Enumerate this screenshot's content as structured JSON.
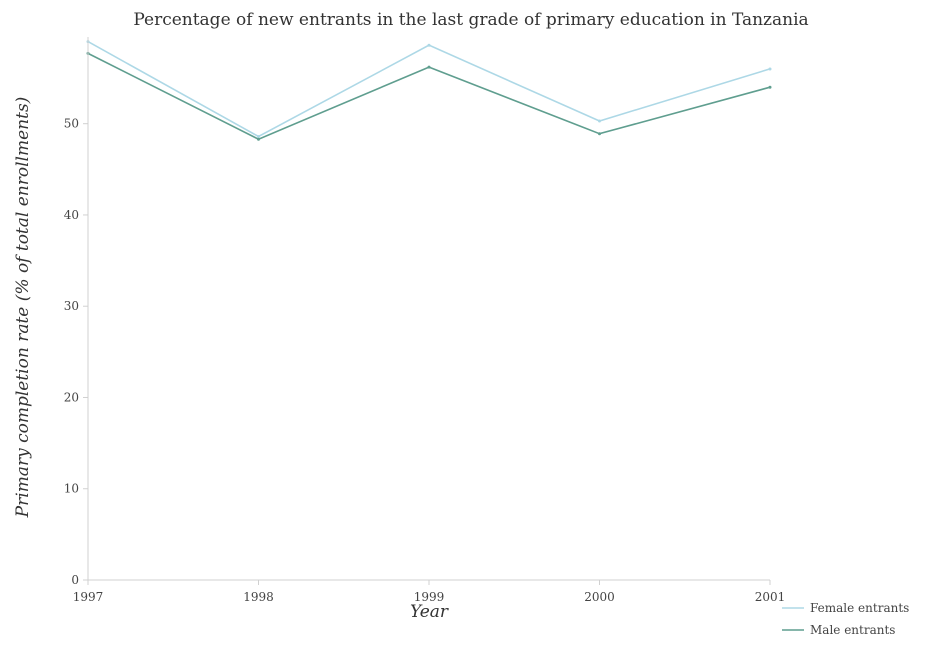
{
  "chart_data": {
    "type": "line",
    "title": "Percentage of new entrants in the last grade of primary education in Tanzania",
    "xlabel": "Year",
    "ylabel": "Primary completion rate (% of total enrollments)",
    "categories": [
      "1997",
      "1998",
      "1999",
      "2000",
      "2001"
    ],
    "ylim": [
      0,
      59.5
    ],
    "yticks": [
      0,
      10,
      20,
      30,
      40,
      50
    ],
    "grid": false,
    "legend": "bottom-right",
    "series": [
      {
        "name": "Female entrants",
        "color": "#add8e6",
        "values": [
          59.0,
          48.6,
          58.6,
          50.3,
          56.0
        ]
      },
      {
        "name": "Male entrants",
        "color": "#5f9e8f",
        "values": [
          57.7,
          48.3,
          56.2,
          48.9,
          54.0
        ]
      }
    ]
  }
}
